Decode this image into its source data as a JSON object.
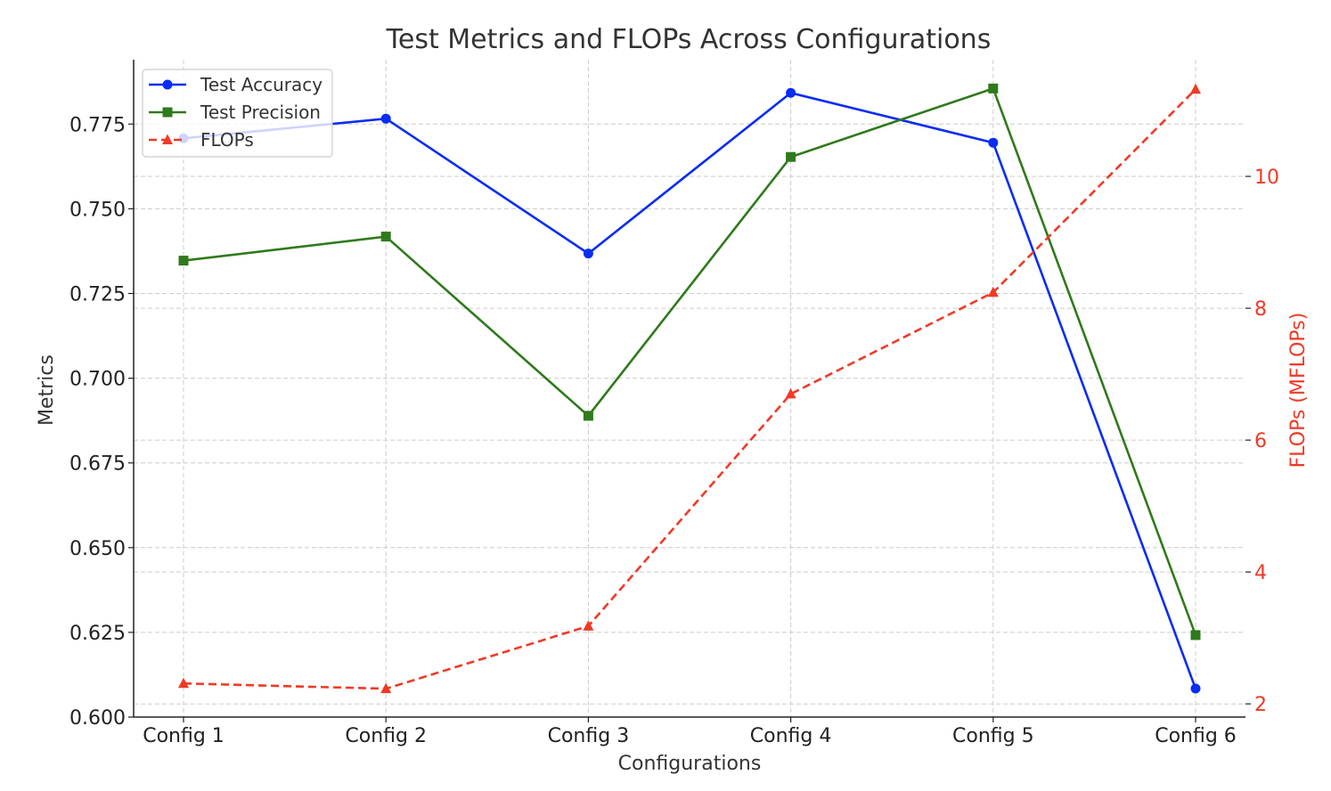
{
  "chart_data": {
    "type": "line",
    "title": "Test Metrics and FLOPs Across Configurations",
    "xlabel": "Configurations",
    "ylabel": "Metrics",
    "ylabel_right": "FLOPs (MFLOPs)",
    "categories": [
      "Config 1",
      "Config 2",
      "Config 3",
      "Config 4",
      "Config 5",
      "Config 6"
    ],
    "ylim": [
      0.6,
      0.794
    ],
    "ylim_right": [
      1.8,
      11.77
    ],
    "yticks": [
      "0.600",
      "0.625",
      "0.650",
      "0.675",
      "0.700",
      "0.725",
      "0.750",
      "0.775"
    ],
    "yticks_right": [
      "2",
      "4",
      "6",
      "8",
      "10"
    ],
    "grid": true,
    "legend_position": "top-left",
    "series": [
      {
        "name": "Test Accuracy",
        "axis": "left",
        "color": "#0a2cf5",
        "marker": "circle",
        "dash": "solid",
        "values": [
          0.7708,
          0.7766,
          0.7368,
          0.7842,
          0.7695,
          0.6084
        ]
      },
      {
        "name": "Test Precision",
        "axis": "left",
        "color": "#2f7a1c",
        "marker": "square",
        "dash": "solid",
        "values": [
          0.7347,
          0.7418,
          0.6889,
          0.7653,
          0.7855,
          0.6242
        ]
      },
      {
        "name": "FLOPs",
        "axis": "right",
        "color": "#ef3a26",
        "marker": "triangle",
        "dash": "dashed",
        "values": [
          2.31,
          2.23,
          3.18,
          6.7,
          8.24,
          11.32
        ]
      }
    ]
  }
}
